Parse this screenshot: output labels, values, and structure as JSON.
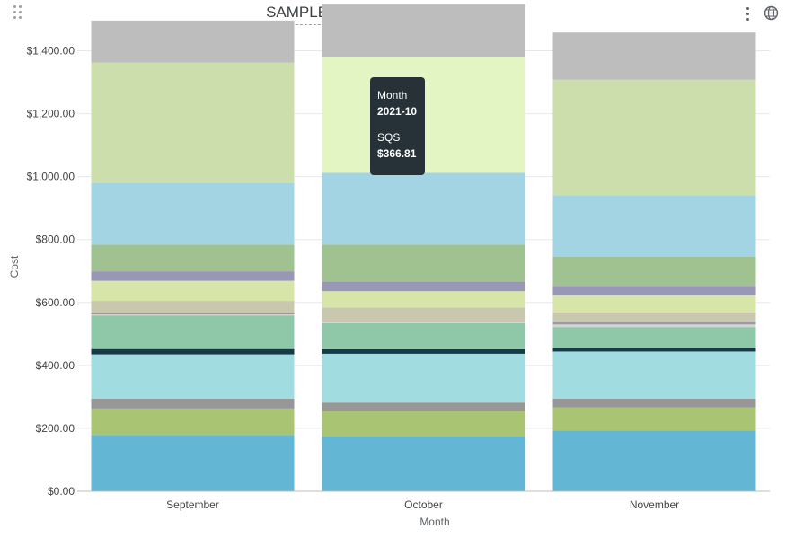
{
  "header": {
    "title": "SAMPLE DATA - Cost By Component"
  },
  "icons": {
    "drag": "drag-handle-icon",
    "menu": "more-vert-icon",
    "globe": "globe-icon"
  },
  "tooltip": {
    "x_label": "Month",
    "x_value": "2021-10",
    "series_label": "SQS",
    "series_value": "$366.81"
  },
  "chart_data": {
    "type": "bar",
    "stacked": true,
    "xlabel": "Month",
    "ylabel": "Cost",
    "ylim": [
      0,
      1490
    ],
    "y_ticks": [
      0,
      200,
      400,
      600,
      800,
      1000,
      1200,
      1400
    ],
    "y_tick_labels": [
      "$0.00",
      "$200.00",
      "$400.00",
      "$600.00",
      "$800.00",
      "$1,000.00",
      "$1,200.00",
      "$1,400.00"
    ],
    "grid": true,
    "legend": "none",
    "categories": [
      "September",
      "October",
      "November"
    ],
    "highlight": {
      "category": 1,
      "series": 14
    },
    "series": [
      {
        "color": "#63b7d4",
        "values": [
          179,
          174,
          193
        ]
      },
      {
        "color": "#a9c472",
        "values": [
          84,
          80,
          73
        ]
      },
      {
        "color": "#979797",
        "values": [
          31,
          28,
          28
        ]
      },
      {
        "color": "#a1dde0",
        "values": [
          141,
          155,
          150
        ]
      },
      {
        "color": "#18394a",
        "values": [
          17,
          14,
          11
        ]
      },
      {
        "color": "#8fc8a9",
        "values": [
          107,
          83,
          67
        ]
      },
      {
        "color": "#d8d2d0",
        "values": [
          3,
          5,
          8
        ]
      },
      {
        "color": "#9a9aa4",
        "values": [
          4,
          0,
          9
        ]
      },
      {
        "color": "#c9c8ae",
        "values": [
          39,
          45,
          29
        ]
      },
      {
        "color": "#d7e6a8",
        "values": [
          64,
          52,
          55
        ]
      },
      {
        "color": "#9996b6",
        "values": [
          30,
          31,
          30
        ]
      },
      {
        "color": "#a0c290",
        "values": [
          85,
          117,
          92
        ]
      },
      {
        "color": "#a2d4e4",
        "values": [
          196,
          228,
          196
        ]
      },
      {
        "color": "#cbdeac",
        "values": [
          383,
          0,
          367
        ]
      },
      {
        "color": "#e2f5c3",
        "values": [
          0,
          366.81,
          0
        ]
      },
      {
        "color": "#bdbdbd",
        "values": [
          133,
          168,
          150
        ]
      }
    ]
  }
}
